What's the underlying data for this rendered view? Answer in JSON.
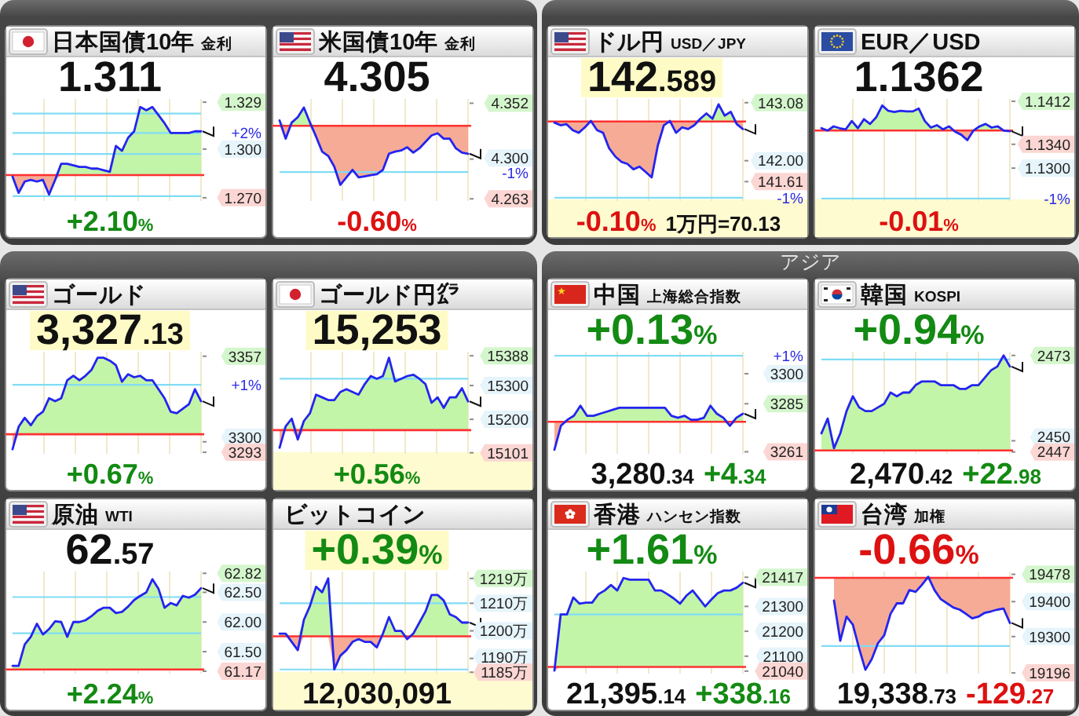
{
  "chart_data": [
    {
      "type": "line",
      "title": "日本国債10年",
      "subtitle": "金利",
      "annotations": [
        "1.311",
        "+2.10%",
        "+2%"
      ],
      "categories": [
        null,
        null,
        null,
        null,
        null,
        null,
        null,
        null,
        null,
        null,
        null,
        null,
        null,
        null,
        null,
        null,
        null,
        null,
        null,
        null,
        null,
        null,
        null,
        null,
        null,
        null,
        null,
        null,
        null,
        null,
        null,
        null
      ],
      "series": [
        {
          "color": "#2424f0",
          "values": [
            1.283,
            1.273,
            1.28,
            1.281,
            1.28,
            1.281,
            1.272,
            1.281,
            1.291,
            1.291,
            1.29,
            1.289,
            1.289,
            1.288,
            1.288,
            1.287,
            1.286,
            1.302,
            1.299,
            1.307,
            1.311,
            1.326,
            1.324,
            1.326,
            1.321,
            1.316,
            1.31,
            1.31,
            1.31,
            1.31,
            1.311,
            1.311
          ],
          "lower": [
            1.283,
            1.273,
            1.28,
            1.281,
            1.28,
            1.281,
            1.272,
            1.281,
            1.284,
            1.284,
            1.284,
            1.284,
            1.284,
            1.284,
            1.284,
            1.284,
            1.284,
            1.284,
            1.284,
            1.284,
            1.284,
            1.284,
            1.284,
            1.284,
            1.284,
            1.284,
            1.284,
            1.284,
            1.284,
            1.284,
            1.284,
            1.284
          ],
          "upper": [
            1.284,
            1.284,
            1.284,
            1.284,
            1.284,
            1.284,
            1.284,
            1.284,
            1.291,
            1.291,
            1.29,
            1.289,
            1.289,
            1.288,
            1.288,
            1.287,
            1.286,
            1.302,
            1.299,
            1.307,
            1.311,
            1.326,
            1.324,
            1.326,
            1.321,
            1.316,
            1.31,
            1.31,
            1.31,
            1.31,
            1.311,
            1.311
          ]
        }
      ],
      "ylim": [
        1.268,
        1.331
      ],
      "yticks": [
        {
          "value": 1.27,
          "label": "1.270"
        },
        {
          "value": 1.3,
          "label": "1.300"
        },
        1.329
      ],
      "ref_lines": [
        {
          "axis": "y",
          "value": 1.284,
          "color": "#ff3030"
        },
        {
          "axis": "y",
          "value": 1.297,
          "color": "#80dcf5"
        },
        {
          "axis": "y",
          "value": 1.31,
          "color": "#80dcf5"
        },
        {
          "axis": "y",
          "value": 1.322,
          "color": "#80dcf5"
        },
        {
          "axis": "y",
          "value": 1.271,
          "color": "#80dcf5"
        }
      ],
      "grid": "x"
    },
    {
      "type": "line",
      "title": "米国債10年",
      "subtitle": "金利",
      "annotations": [
        "4.305",
        "-0.60%",
        "-1%"
      ],
      "categories": [
        null,
        null,
        null,
        null,
        null,
        null,
        null,
        null,
        null,
        null,
        null,
        null,
        null,
        null,
        null,
        null,
        null,
        null,
        null,
        null,
        null,
        null,
        null,
        null,
        null,
        null,
        null,
        null,
        null,
        null,
        null,
        null
      ],
      "series": [
        {
          "color": "#2424f0",
          "values": [
            4.336,
            4.319,
            4.334,
            4.339,
            4.348,
            4.334,
            4.321,
            4.307,
            4.303,
            4.293,
            4.276,
            4.283,
            4.29,
            4.283,
            4.284,
            4.285,
            4.286,
            4.29,
            4.305,
            4.307,
            4.308,
            4.311,
            4.306,
            4.31,
            4.316,
            4.322,
            4.324,
            4.319,
            4.319,
            4.31,
            4.306,
            4.305
          ],
          "lower": [
            4.331,
            4.319,
            4.331,
            4.331,
            4.331,
            4.331,
            4.321,
            4.307,
            4.303,
            4.293,
            4.276,
            4.283,
            4.29,
            4.283,
            4.284,
            4.285,
            4.286,
            4.29,
            4.305,
            4.307,
            4.308,
            4.311,
            4.306,
            4.31,
            4.316,
            4.322,
            4.324,
            4.319,
            4.319,
            4.31,
            4.306,
            4.305
          ],
          "upper": [
            4.336,
            4.331,
            4.334,
            4.339,
            4.348,
            4.334,
            4.331,
            4.331,
            4.331,
            4.331,
            4.331,
            4.331,
            4.331,
            4.331,
            4.331,
            4.331,
            4.331,
            4.331,
            4.331,
            4.331,
            4.331,
            4.331,
            4.331,
            4.331,
            4.331,
            4.331,
            4.331,
            4.331,
            4.331,
            4.331,
            4.331,
            4.331
          ]
        }
      ],
      "ylim": [
        4.261,
        4.356
      ],
      "yticks": [
        4.263,
        {
          "value": 4.3,
          "label": "4.300"
        },
        4.352
      ],
      "ref_lines": [
        {
          "axis": "y",
          "value": 4.331,
          "color": "#ff3030"
        },
        {
          "axis": "y",
          "value": 4.288,
          "color": "#80dcf5"
        }
      ],
      "grid": "x"
    },
    {
      "type": "line",
      "title": "ドル円",
      "subtitle": "USD／JPY",
      "annotations": [
        "142.589",
        "-0.10%",
        "1万円=70.13",
        "-1%"
      ],
      "categories": [
        null,
        null,
        null,
        null,
        null,
        null,
        null,
        null,
        null,
        null,
        null,
        null,
        null,
        null,
        null,
        null,
        null,
        null,
        null,
        null,
        null,
        null,
        null,
        null,
        null,
        null,
        null,
        null,
        null,
        null,
        null,
        null
      ],
      "series": [
        {
          "color": "#2424f0",
          "values": [
            142.71,
            142.66,
            142.68,
            142.57,
            142.52,
            142.62,
            142.74,
            142.57,
            142.52,
            142.23,
            142.08,
            141.98,
            141.94,
            141.84,
            141.89,
            141.79,
            141.69,
            142.28,
            142.66,
            142.74,
            142.52,
            142.62,
            142.59,
            142.66,
            142.78,
            142.88,
            142.78,
            143.05,
            142.84,
            142.91,
            142.68,
            142.59
          ],
          "lower": [
            142.71,
            142.66,
            142.68,
            142.57,
            142.52,
            142.62,
            142.73,
            142.57,
            142.52,
            142.23,
            142.08,
            141.98,
            141.94,
            141.84,
            141.89,
            141.79,
            141.69,
            142.28,
            142.66,
            142.73,
            142.52,
            142.62,
            142.59,
            142.66,
            142.73,
            142.73,
            142.73,
            142.73,
            142.73,
            142.73,
            142.68,
            142.59
          ],
          "upper": [
            142.73,
            142.73,
            142.73,
            142.73,
            142.73,
            142.73,
            142.74,
            142.73,
            142.73,
            142.73,
            142.73,
            142.73,
            142.73,
            142.73,
            142.73,
            142.73,
            142.73,
            142.73,
            142.73,
            142.74,
            142.73,
            142.73,
            142.73,
            142.73,
            142.78,
            142.88,
            142.78,
            143.05,
            142.84,
            142.91,
            142.73,
            142.73
          ]
        }
      ],
      "ylim": [
        141.25,
        143.15
      ],
      "yticks": [
        141.61,
        {
          "value": 142,
          "label": "142.00"
        },
        143.08
      ],
      "ref_lines": [
        {
          "axis": "y",
          "value": 142.73,
          "color": "#ff3030"
        },
        {
          "axis": "y",
          "value": 141.31,
          "color": "#80dcf5"
        }
      ],
      "grid": "x"
    },
    {
      "type": "line",
      "title": "EUR／USD",
      "annotations": [
        "1.1362",
        "-0.01%",
        "-1%"
      ],
      "categories": [
        null,
        null,
        null,
        null,
        null,
        null,
        null,
        null,
        null,
        null,
        null,
        null,
        null,
        null,
        null,
        null,
        null,
        null,
        null,
        null,
        null,
        null,
        null,
        null,
        null,
        null,
        null,
        null,
        null,
        null,
        null,
        null
      ],
      "series": [
        {
          "color": "#2424f0",
          "values": [
            1.1367,
            1.1363,
            1.137,
            1.1367,
            1.1365,
            1.1379,
            1.1367,
            1.1382,
            1.1374,
            1.1385,
            1.1405,
            1.1396,
            1.1394,
            1.1396,
            1.1395,
            1.1395,
            1.14,
            1.1379,
            1.1368,
            1.1372,
            1.1365,
            1.137,
            1.1361,
            1.1356,
            1.1347,
            1.1363,
            1.137,
            1.1374,
            1.1368,
            1.137,
            1.1363,
            1.1362
          ],
          "lower": [
            1.1363,
            1.1363,
            1.1363,
            1.1363,
            1.1363,
            1.1363,
            1.1363,
            1.1363,
            1.1363,
            1.1363,
            1.1363,
            1.1363,
            1.1363,
            1.1363,
            1.1363,
            1.1363,
            1.1363,
            1.1363,
            1.1363,
            1.1363,
            1.1363,
            1.1363,
            1.1361,
            1.1356,
            1.1347,
            1.1363,
            1.1363,
            1.1363,
            1.1363,
            1.1363,
            1.1363,
            1.1362
          ],
          "upper": [
            1.1367,
            1.1363,
            1.137,
            1.1367,
            1.1365,
            1.1379,
            1.1367,
            1.1382,
            1.1374,
            1.1385,
            1.1405,
            1.1396,
            1.1394,
            1.1396,
            1.1395,
            1.1395,
            1.14,
            1.1379,
            1.1368,
            1.1372,
            1.1365,
            1.137,
            1.1363,
            1.1363,
            1.1363,
            1.1363,
            1.137,
            1.1374,
            1.1368,
            1.137,
            1.1363,
            1.1363
          ]
        }
      ],
      "ylim": [
        1.1245,
        1.1416
      ],
      "yticks": [
        {
          "value": 1.13,
          "label": "1.1300"
        },
        {
          "value": 1.134,
          "label": "1.1340"
        },
        1.1412
      ],
      "ref_lines": [
        {
          "axis": "y",
          "value": 1.1363,
          "color": "#ff3030"
        },
        {
          "axis": "y",
          "value": 1.1249,
          "color": "#80dcf5"
        }
      ],
      "grid": "x"
    },
    {
      "type": "other",
      "title": "アジア"
    },
    {
      "type": "line",
      "title": "ゴールド",
      "annotations": [
        "3,327.13",
        "+0.67%",
        "+1%"
      ],
      "categories": [
        null,
        null,
        null,
        null,
        null,
        null,
        null,
        null,
        null,
        null,
        null,
        null,
        null,
        null,
        null,
        null,
        null,
        null,
        null,
        null,
        null,
        null,
        null,
        null,
        null,
        null,
        null,
        null,
        null,
        null,
        null,
        null
      ],
      "series": [
        {
          "color": "#2424f0",
          "values": [
            3295,
            3310,
            3316,
            3311,
            3317,
            3320,
            3329,
            3327,
            3329,
            3341,
            3344,
            3341,
            3344,
            3348,
            3356,
            3356,
            3354,
            3351,
            3340,
            3345,
            3343,
            3344,
            3341,
            3341,
            3335,
            3329,
            3320,
            3319,
            3322,
            3325,
            3335,
            3327
          ],
          "lower": [
            3295,
            3305,
            3305,
            3305,
            3305,
            3305,
            3305,
            3305,
            3305,
            3305,
            3305,
            3305,
            3305,
            3305,
            3305,
            3305,
            3305,
            3305,
            3305,
            3305,
            3305,
            3305,
            3305,
            3305,
            3305,
            3305,
            3305,
            3305,
            3305,
            3305,
            3305,
            3305
          ],
          "upper": [
            3305,
            3310,
            3316,
            3311,
            3317,
            3320,
            3329,
            3327,
            3329,
            3341,
            3344,
            3341,
            3344,
            3348,
            3356,
            3356,
            3354,
            3351,
            3340,
            3345,
            3343,
            3344,
            3341,
            3341,
            3335,
            3329,
            3320,
            3319,
            3322,
            3325,
            3335,
            3327
          ]
        }
      ],
      "ylim": [
        3292,
        3360
      ],
      "yticks": [
        3293,
        3300,
        3357
      ],
      "ref_lines": [
        {
          "axis": "y",
          "value": 3305,
          "color": "#ff3030"
        },
        {
          "axis": "y",
          "value": 3338,
          "color": "#80dcf5"
        }
      ],
      "grid": "x"
    },
    {
      "type": "line",
      "title": "ゴールド円㌘",
      "annotations": [
        "15,253",
        "+0.56%"
      ],
      "categories": [
        null,
        null,
        null,
        null,
        null,
        null,
        null,
        null,
        null,
        null,
        null,
        null,
        null,
        null,
        null,
        null,
        null,
        null,
        null,
        null,
        null,
        null,
        null,
        null,
        null,
        null,
        null,
        null,
        null,
        null,
        null,
        null
      ],
      "series": [
        {
          "color": "#2424f0",
          "values": [
            15116,
            15179,
            15202,
            15140,
            15195,
            15218,
            15273,
            15265,
            15257,
            15257,
            15281,
            15289,
            15281,
            15273,
            15304,
            15328,
            15320,
            15328,
            15382,
            15312,
            15320,
            15328,
            15332,
            15320,
            15304,
            15249,
            15265,
            15234,
            15265,
            15265,
            15292,
            15253
          ],
          "lower": [
            15116,
            15168,
            15168,
            15140,
            15168,
            15168,
            15168,
            15168,
            15168,
            15168,
            15168,
            15168,
            15168,
            15168,
            15168,
            15168,
            15168,
            15168,
            15168,
            15168,
            15168,
            15168,
            15168,
            15168,
            15168,
            15168,
            15168,
            15168,
            15168,
            15168,
            15168,
            15168
          ],
          "upper": [
            15168,
            15179,
            15202,
            15168,
            15195,
            15218,
            15273,
            15265,
            15257,
            15257,
            15281,
            15289,
            15281,
            15273,
            15304,
            15328,
            15320,
            15328,
            15382,
            15312,
            15320,
            15328,
            15332,
            15320,
            15304,
            15249,
            15265,
            15234,
            15265,
            15265,
            15292,
            15253
          ]
        }
      ],
      "ylim": [
        15098,
        15400
      ],
      "yticks": [
        15101,
        15200,
        15300,
        15388
      ],
      "ref_lines": [
        {
          "axis": "y",
          "value": 15168,
          "color": "#ff3030"
        },
        {
          "axis": "y",
          "value": 15320,
          "color": "#80dcf5"
        }
      ],
      "grid": "x"
    },
    {
      "type": "line",
      "title": "中国",
      "subtitle": "上海総合指数",
      "annotations": [
        "+0.13%",
        "3,280.34",
        "+4.34",
        "+1%"
      ],
      "categories": [
        null,
        null,
        null,
        null,
        null,
        null,
        null,
        null,
        null,
        null,
        null,
        null,
        null,
        null,
        null,
        null,
        null,
        null,
        null,
        null,
        null,
        null,
        null,
        null,
        null,
        null,
        null,
        null,
        null,
        null
      ],
      "series": [
        {
          "color": "#2424f0",
          "values": [
            3262,
            3274,
            3277,
            3279,
            3284,
            3279,
            3279,
            3280,
            3281,
            3282,
            3283,
            3283,
            3283,
            3283,
            3283,
            3283,
            3283,
            3283,
            3279,
            3278,
            3279,
            3277,
            3277,
            3278,
            3284,
            3280,
            3278,
            3274,
            3278,
            3280
          ],
          "lower": [
            3262,
            3274,
            3276,
            3276,
            3276,
            3276,
            3276,
            3276,
            3276,
            3276,
            3276,
            3276,
            3276,
            3276,
            3276,
            3276,
            3276,
            3276,
            3276,
            3276,
            3276,
            3276,
            3276,
            3276,
            3276,
            3276,
            3276,
            3274,
            3276,
            3276
          ],
          "upper": [
            3276,
            3276,
            3277,
            3279,
            3284,
            3279,
            3279,
            3280,
            3281,
            3282,
            3283,
            3283,
            3283,
            3283,
            3283,
            3283,
            3283,
            3283,
            3279,
            3278,
            3279,
            3277,
            3277,
            3278,
            3284,
            3280,
            3278,
            3276,
            3278,
            3280
          ]
        }
      ],
      "ylim": [
        3260,
        3311
      ],
      "yticks": [
        3261,
        3285,
        3300
      ],
      "ref_lines": [
        {
          "axis": "y",
          "value": 3276,
          "color": "#ff3030"
        },
        {
          "axis": "y",
          "value": 3309,
          "color": "#80dcf5"
        }
      ],
      "grid": "x"
    },
    {
      "type": "line",
      "title": "韓国",
      "subtitle": "KOSPI",
      "annotations": [
        "+0.94%",
        "2,470.42",
        "+22.98"
      ],
      "categories": [
        null,
        null,
        null,
        null,
        null,
        null,
        null,
        null,
        null,
        null,
        null,
        null,
        null,
        null,
        null,
        null,
        null,
        null,
        null,
        null,
        null,
        null,
        null,
        null,
        null,
        null,
        null,
        null,
        null,
        null,
        null
      ],
      "series": [
        {
          "color": "#2424f0",
          "values": [
            2452,
            2456,
            2448,
            2452,
            2458,
            2462,
            2459,
            2458,
            2458,
            2459,
            2460,
            2463,
            2462,
            2463,
            2463,
            2465,
            2466,
            2466,
            2466,
            2465,
            2465,
            2465,
            2464,
            2464,
            2465,
            2465,
            2467,
            2469,
            2470,
            2473,
            2470
          ],
          "lower": [
            2447.4,
            2447.4,
            2447.4,
            2447.4,
            2447.4,
            2447.4,
            2447.4,
            2447.4,
            2447.4,
            2447.4,
            2447.4,
            2447.4,
            2447.4,
            2447.4,
            2447.4,
            2447.4,
            2447.4,
            2447.4,
            2447.4,
            2447.4,
            2447.4,
            2447.4,
            2447.4,
            2447.4,
            2447.4,
            2447.4,
            2447.4,
            2447.4,
            2447.4,
            2447.4,
            2447.4
          ],
          "upper": [
            2452,
            2456,
            2448,
            2452,
            2458,
            2462,
            2459,
            2458,
            2458,
            2459,
            2460,
            2463,
            2462,
            2463,
            2463,
            2465,
            2466,
            2466,
            2466,
            2465,
            2465,
            2465,
            2464,
            2464,
            2465,
            2465,
            2467,
            2469,
            2470,
            2473,
            2470
          ]
        }
      ],
      "ylim": [
        2446.5,
        2474
      ],
      "yticks": [
        2447,
        2450,
        2473
      ],
      "ref_lines": [
        {
          "axis": "y",
          "value": 2447.4,
          "color": "#ff3030"
        },
        {
          "axis": "y",
          "value": 2471.9,
          "color": "#80dcf5"
        }
      ],
      "grid": "x"
    },
    {
      "type": "line",
      "title": "原油",
      "subtitle": "WTI",
      "annotations": [
        "62.57",
        "+2.24%"
      ],
      "categories": [
        null,
        null,
        null,
        null,
        null,
        null,
        null,
        null,
        null,
        null,
        null,
        null,
        null,
        null,
        null,
        null,
        null,
        null,
        null,
        null,
        null,
        null,
        null,
        null,
        null,
        null,
        null,
        null,
        null,
        null,
        null,
        null
      ],
      "series": [
        {
          "color": "#2424f0",
          "values": [
            61.26,
            61.26,
            61.62,
            61.75,
            61.97,
            61.79,
            61.88,
            62.01,
            62.0,
            61.75,
            62.0,
            62.0,
            62.03,
            62.1,
            62.19,
            62.24,
            62.24,
            62.15,
            62.17,
            62.26,
            62.37,
            62.44,
            62.5,
            62.72,
            62.56,
            62.24,
            62.32,
            62.28,
            62.44,
            62.41,
            62.46,
            62.57
          ],
          "lower": [
            61.2,
            61.2,
            61.2,
            61.2,
            61.2,
            61.2,
            61.2,
            61.2,
            61.2,
            61.2,
            61.2,
            61.2,
            61.2,
            61.2,
            61.2,
            61.2,
            61.2,
            61.2,
            61.2,
            61.2,
            61.2,
            61.2,
            61.2,
            61.2,
            61.2,
            61.2,
            61.2,
            61.2,
            61.2,
            61.2,
            61.2,
            61.2
          ],
          "upper": [
            61.26,
            61.26,
            61.62,
            61.75,
            61.97,
            61.79,
            61.88,
            62.01,
            62.0,
            61.75,
            62.0,
            62.0,
            62.03,
            62.1,
            62.19,
            62.24,
            62.24,
            62.15,
            62.17,
            62.26,
            62.37,
            62.44,
            62.5,
            62.72,
            62.56,
            62.24,
            62.32,
            62.28,
            62.44,
            62.41,
            62.46,
            62.57
          ]
        }
      ],
      "ylim": [
        61.13,
        62.85
      ],
      "yticks": [
        61.17,
        {
          "value": 61.5,
          "label": "61.50"
        },
        {
          "value": 62,
          "label": "62.00"
        },
        {
          "value": 62.5,
          "label": "62.50"
        },
        62.82
      ],
      "ref_lines": [
        {
          "axis": "y",
          "value": 61.2,
          "color": "#ff3030"
        },
        {
          "axis": "y",
          "value": 61.81,
          "color": "#80dcf5"
        },
        {
          "axis": "y",
          "value": 62.42,
          "color": "#80dcf5"
        }
      ],
      "grid": "x"
    },
    {
      "type": "line",
      "title": "ビットコイン",
      "annotations": [
        "+0.39%",
        "12,030,091"
      ],
      "categories": [
        null,
        null,
        null,
        null,
        null,
        null,
        null,
        null,
        null,
        null,
        null,
        null,
        null,
        null,
        null,
        null,
        null,
        null,
        null,
        null,
        null,
        null,
        null,
        null,
        null,
        null,
        null,
        null,
        null,
        null,
        null,
        null
      ],
      "series": [
        {
          "color": "#2424f0",
          "values": [
            1199,
            1199,
            1196,
            1193,
            1204,
            1209,
            1216,
            1214,
            1219,
            1186,
            1191,
            1193,
            1196,
            1197,
            1196,
            1196,
            1194,
            1199,
            1205,
            1200,
            1200,
            1197,
            1199,
            1203,
            1207,
            1213,
            1213,
            1211,
            1206,
            1205,
            1203,
            1203
          ],
          "lower": [
            1198,
            1198,
            1196,
            1193,
            1198,
            1198,
            1198,
            1198,
            1198,
            1186,
            1191,
            1193,
            1196,
            1197,
            1196,
            1196,
            1194,
            1198,
            1198,
            1198,
            1198,
            1197,
            1198,
            1198,
            1198,
            1198,
            1198,
            1198,
            1198,
            1198,
            1198,
            1198
          ],
          "upper": [
            1199,
            1199,
            1198,
            1198,
            1204,
            1209,
            1216,
            1214,
            1219,
            1198,
            1198,
            1198,
            1198,
            1198,
            1198,
            1198,
            1198,
            1199,
            1205,
            1200,
            1200,
            1198,
            1199,
            1203,
            1207,
            1213,
            1213,
            1211,
            1206,
            1205,
            1203,
            1203
          ]
        }
      ],
      "ylim": [
        1184.5,
        1221.5
      ],
      "yticks": [
        {
          "value": 1185,
          "label": "1185万"
        },
        {
          "value": 1190,
          "label": "1190万"
        },
        {
          "value": 1200,
          "label": "1200万"
        },
        {
          "value": 1210,
          "label": "1210万"
        },
        {
          "value": 1219,
          "label": "1219万"
        }
      ],
      "ref_lines": [
        {
          "axis": "y",
          "value": 1198,
          "color": "#ff3030"
        },
        {
          "axis": "y",
          "value": 1210,
          "color": "#80dcf5"
        },
        {
          "axis": "y",
          "value": 1186,
          "color": "#80dcf5"
        }
      ],
      "grid": "x"
    },
    {
      "type": "line",
      "title": "香港",
      "subtitle": "ハンセン指数",
      "annotations": [
        "+1.61%",
        "21,395.14",
        "+338.16"
      ],
      "categories": [
        null,
        null,
        null,
        null,
        null,
        null,
        null,
        null,
        null,
        null,
        null,
        null,
        null,
        null,
        null,
        null,
        null,
        null,
        null,
        null,
        null,
        null,
        null,
        null,
        null,
        null,
        null,
        null,
        null,
        null,
        null
      ],
      "series": [
        {
          "color": "#2424f0",
          "values": [
            21042,
            21268,
            21268,
            21336,
            21311,
            21315,
            21315,
            21349,
            21364,
            21386,
            21364,
            21414,
            21407,
            21407,
            21407,
            21407,
            21364,
            21364,
            21349,
            21332,
            21311,
            21343,
            21364,
            21332,
            21300,
            21328,
            21353,
            21364,
            21364,
            21375,
            21395
          ],
          "lower": [
            21042,
            21057,
            21057,
            21057,
            21057,
            21057,
            21057,
            21057,
            21057,
            21057,
            21057,
            21057,
            21057,
            21057,
            21057,
            21057,
            21057,
            21057,
            21057,
            21057,
            21057,
            21057,
            21057,
            21057,
            21057,
            21057,
            21057,
            21057,
            21057,
            21057,
            21057
          ],
          "upper": [
            21057,
            21268,
            21268,
            21336,
            21311,
            21315,
            21315,
            21349,
            21364,
            21386,
            21364,
            21414,
            21407,
            21407,
            21407,
            21407,
            21364,
            21364,
            21349,
            21332,
            21311,
            21343,
            21364,
            21332,
            21300,
            21328,
            21353,
            21364,
            21364,
            21375,
            21395
          ]
        }
      ],
      "ylim": [
        21030,
        21440
      ],
      "yticks": [
        21040,
        21100,
        21200,
        21300,
        21417
      ],
      "ref_lines": [
        {
          "axis": "y",
          "value": 21057,
          "color": "#ff3030"
        },
        {
          "axis": "y",
          "value": 21268,
          "color": "#80dcf5"
        }
      ],
      "grid": "x"
    },
    {
      "type": "line",
      "title": "台湾",
      "subtitle": "加権",
      "annotations": [
        "-0.66%",
        "19,338.73",
        "-129.27"
      ],
      "categories": [
        null,
        null,
        null,
        null,
        null,
        null,
        null,
        null,
        null,
        null,
        null,
        null,
        null,
        null,
        null,
        null,
        null,
        null,
        null,
        null,
        null,
        null,
        null,
        null,
        null,
        null,
        null,
        null,
        null,
        null,
        null
      ],
      "series": [
        {
          "color": "#2424f0",
          "values": [
            null,
            null,
            19403,
            19288,
            19357,
            19334,
            19266,
            19205,
            19235,
            19281,
            19304,
            19365,
            19395,
            19395,
            19433,
            19428,
            19448,
            19471,
            19433,
            19407,
            19395,
            19383,
            19377,
            19365,
            19352,
            19357,
            19368,
            19372,
            19377,
            19380,
            19339
          ],
          "lower": [
            null,
            null,
            19403,
            19288,
            19357,
            19334,
            19266,
            19205,
            19235,
            19281,
            19304,
            19365,
            19395,
            19395,
            19433,
            19428,
            19448,
            19468,
            19433,
            19407,
            19395,
            19383,
            19377,
            19365,
            19352,
            19357,
            19368,
            19372,
            19377,
            19380,
            19339
          ],
          "upper": [
            null,
            null,
            19468,
            19468,
            19468,
            19468,
            19468,
            19468,
            19468,
            19468,
            19468,
            19468,
            19468,
            19468,
            19468,
            19468,
            19468,
            19471,
            19468,
            19468,
            19468,
            19468,
            19468,
            19468,
            19468,
            19468,
            19468,
            19468,
            19468,
            19468,
            19468
          ]
        }
      ],
      "ylim": [
        19194,
        19486
      ],
      "yticks": [
        19196,
        19300,
        19400,
        19478
      ],
      "ref_lines": [
        {
          "axis": "y",
          "value": 19468,
          "color": "#ff3030"
        },
        {
          "axis": "y",
          "value": 19273,
          "color": "#80dcf5"
        }
      ],
      "grid": "x"
    }
  ]
}
